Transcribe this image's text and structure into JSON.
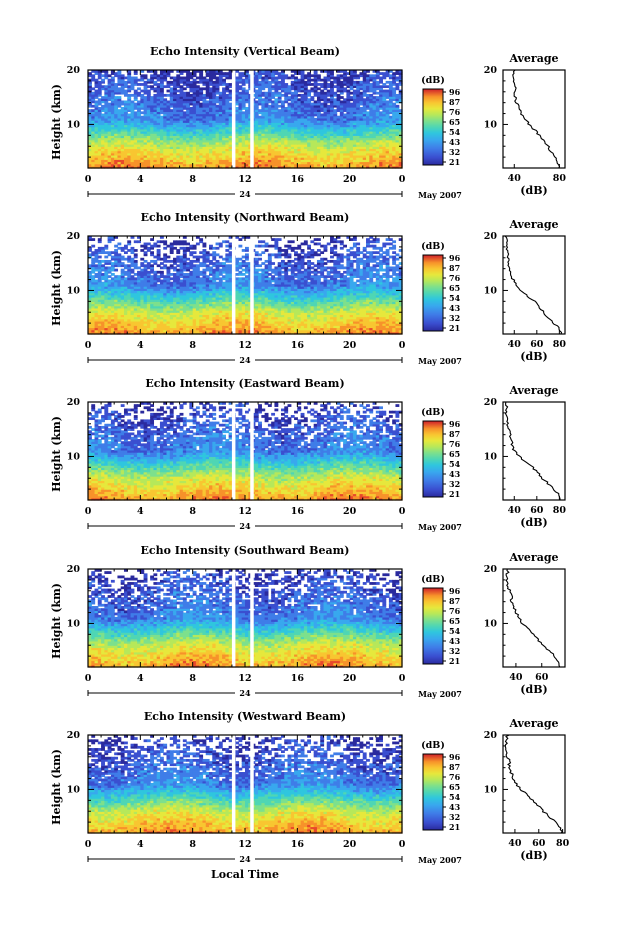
{
  "figure": {
    "xlabel": "Local Time",
    "date_label": "May 2007",
    "day_label": "24",
    "cbar_unit": "(dB)",
    "profile_title": "Average",
    "profile_xlabel": "(dB)",
    "ylabel": "Height (km)"
  },
  "chart_data": [
    {
      "type": "heatmap",
      "title": "Echo Intensity (Vertical Beam)",
      "ylabel": "Height (km)",
      "xlabel": "",
      "x_ticks": [
        "0",
        "4",
        "8",
        "12",
        "16",
        "20",
        "0"
      ],
      "y_ticks": [
        "10",
        "20"
      ],
      "xlim": [
        0,
        24
      ],
      "ylim": [
        2,
        20
      ],
      "colorbar": {
        "label": "(dB)",
        "ticks": [
          "96",
          "87",
          "76",
          "65",
          "54",
          "43",
          "32",
          "21"
        ]
      },
      "profile": {
        "title": "Average",
        "xlabel": "(dB)",
        "x_ticks": [
          "40",
          "80"
        ],
        "xlim": [
          30,
          85
        ],
        "y_ticks": [
          "10",
          "20"
        ],
        "heights": [
          2,
          3,
          4,
          5,
          6,
          7,
          8,
          9,
          10,
          11,
          12,
          13,
          14,
          15,
          16,
          17,
          18,
          19,
          20
        ],
        "values": [
          80,
          79,
          77,
          72,
          70,
          66,
          62,
          58,
          53,
          50,
          46,
          44,
          42,
          41,
          40,
          41,
          40,
          39,
          41
        ]
      },
      "gap_hours": [
        11,
        12.4
      ]
    },
    {
      "type": "heatmap",
      "title": "Echo Intensity (Northward Beam)",
      "ylabel": "Height (km)",
      "xlabel": "",
      "x_ticks": [
        "0",
        "4",
        "8",
        "12",
        "16",
        "20",
        "0"
      ],
      "y_ticks": [
        "10",
        "20"
      ],
      "xlim": [
        0,
        24
      ],
      "ylim": [
        2,
        20
      ],
      "colorbar": {
        "label": "(dB)",
        "ticks": [
          "96",
          "87",
          "76",
          "65",
          "54",
          "43",
          "32",
          "21"
        ]
      },
      "profile": {
        "title": "Average",
        "xlabel": "(dB)",
        "x_ticks": [
          "40",
          "60",
          "80"
        ],
        "xlim": [
          30,
          85
        ],
        "y_ticks": [
          "10",
          "20"
        ],
        "heights": [
          2,
          3,
          4,
          5,
          6,
          7,
          8,
          9,
          10,
          11,
          12,
          13,
          14,
          15,
          16,
          17,
          18,
          19,
          20
        ],
        "values": [
          82,
          80,
          75,
          70,
          66,
          62,
          58,
          52,
          46,
          42,
          39,
          37,
          36,
          35,
          34,
          34,
          33,
          33,
          33
        ]
      },
      "gap_hours": [
        11,
        12.4
      ]
    },
    {
      "type": "heatmap",
      "title": "Echo Intensity (Eastward Beam)",
      "ylabel": "Height (km)",
      "xlabel": "",
      "x_ticks": [
        "0",
        "4",
        "8",
        "12",
        "16",
        "20",
        "0"
      ],
      "y_ticks": [
        "10",
        "20"
      ],
      "xlim": [
        0,
        24
      ],
      "ylim": [
        2,
        20
      ],
      "colorbar": {
        "label": "(dB)",
        "ticks": [
          "96",
          "87",
          "76",
          "65",
          "54",
          "43",
          "32",
          "21"
        ]
      },
      "profile": {
        "title": "Average",
        "xlabel": "(dB)",
        "x_ticks": [
          "40",
          "60",
          "80"
        ],
        "xlim": [
          30,
          85
        ],
        "y_ticks": [
          "10",
          "20"
        ],
        "heights": [
          2,
          3,
          4,
          5,
          6,
          7,
          8,
          9,
          10,
          11,
          12,
          13,
          14,
          15,
          16,
          17,
          18,
          19,
          20
        ],
        "values": [
          80,
          79,
          75,
          70,
          65,
          61,
          56,
          50,
          44,
          40,
          38,
          37,
          36,
          35,
          34,
          34,
          33,
          33,
          33
        ]
      },
      "gap_hours": [
        11,
        12.4
      ]
    },
    {
      "type": "heatmap",
      "title": "Echo Intensity (Southward Beam)",
      "ylabel": "Height (km)",
      "xlabel": "",
      "x_ticks": [
        "0",
        "4",
        "8",
        "12",
        "16",
        "20",
        "0"
      ],
      "y_ticks": [
        "10",
        "20"
      ],
      "xlim": [
        0,
        24
      ],
      "ylim": [
        2,
        20
      ],
      "colorbar": {
        "label": "(dB)",
        "ticks": [
          "96",
          "87",
          "76",
          "65",
          "54",
          "43",
          "32",
          "21"
        ]
      },
      "profile": {
        "title": "Average",
        "xlabel": "(dB)",
        "x_ticks": [
          "40",
          "60"
        ],
        "xlim": [
          30,
          78
        ],
        "y_ticks": [
          "10",
          "20"
        ],
        "heights": [
          2,
          3,
          4,
          5,
          6,
          7,
          8,
          9,
          10,
          11,
          12,
          13,
          14,
          15,
          16,
          17,
          18,
          19,
          20
        ],
        "values": [
          74,
          73,
          70,
          65,
          61,
          57,
          53,
          49,
          45,
          43,
          40,
          39,
          37,
          36,
          35,
          34,
          33,
          33,
          34
        ]
      },
      "gap_hours": [
        11,
        12.4
      ]
    },
    {
      "type": "heatmap",
      "title": "Echo Intensity (Westward Beam)",
      "ylabel": "Height (km)",
      "xlabel": "Local Time",
      "x_ticks": [
        "0",
        "4",
        "8",
        "12",
        "16",
        "20",
        "0"
      ],
      "y_ticks": [
        "10",
        "20"
      ],
      "xlim": [
        0,
        24
      ],
      "ylim": [
        2,
        20
      ],
      "colorbar": {
        "label": "(dB)",
        "ticks": [
          "96",
          "87",
          "76",
          "65",
          "54",
          "43",
          "32",
          "21"
        ]
      },
      "profile": {
        "title": "Average",
        "xlabel": "(dB)",
        "x_ticks": [
          "40",
          "60",
          "80"
        ],
        "xlim": [
          30,
          82
        ],
        "y_ticks": [
          "10",
          "20"
        ],
        "heights": [
          2,
          3,
          4,
          5,
          6,
          7,
          8,
          9,
          10,
          11,
          12,
          13,
          14,
          15,
          16,
          17,
          18,
          19,
          20
        ],
        "values": [
          80,
          78,
          74,
          68,
          64,
          60,
          55,
          50,
          45,
          41,
          39,
          37,
          36,
          35,
          34,
          33,
          33,
          33,
          34
        ]
      },
      "gap_hours": [
        11,
        12.4
      ]
    }
  ],
  "colormap": [
    "#2a2a9e",
    "#3a4fd0",
    "#3f7de8",
    "#38a8ee",
    "#2fc6de",
    "#4fd6b4",
    "#7de08c",
    "#b6e85a",
    "#e6e83c",
    "#f8c631",
    "#f7922a",
    "#e8492b",
    "#cf1f2a"
  ]
}
